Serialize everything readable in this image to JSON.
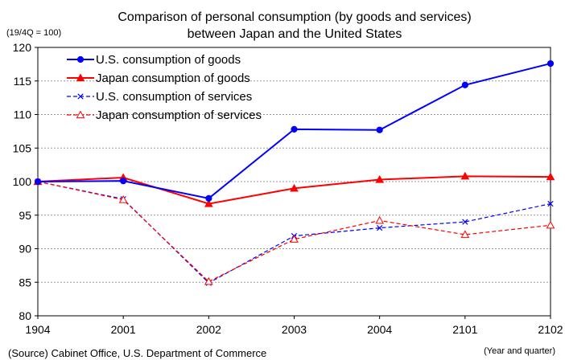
{
  "chart_data": {
    "type": "line",
    "title": "Comparison of personal consumption (by goods and services)",
    "subtitle": "between Japan and the United States",
    "y_unit_label": "(19/4Q = 100)",
    "xlabel": "(Year and quarter)",
    "source": "(Source) Cabinet Office, U.S. Department of Commerce",
    "categories": [
      "1904",
      "2001",
      "2002",
      "2003",
      "2004",
      "2101",
      "2102"
    ],
    "ylim": [
      80,
      120
    ],
    "yticks": [
      80,
      85,
      90,
      95,
      100,
      105,
      110,
      115,
      120
    ],
    "grid": "horizontal dashed",
    "legend_position": "top-left",
    "series": [
      {
        "name": "U.S. consumption of goods",
        "color": "#0000FF",
        "style": "solid",
        "marker": "circle",
        "values": [
          100.0,
          100.1,
          97.5,
          107.8,
          107.7,
          114.4,
          117.6
        ]
      },
      {
        "name": "Japan consumption of goods",
        "color": "#FF0000",
        "style": "solid",
        "marker": "triangle",
        "values": [
          100.0,
          100.6,
          96.7,
          99.0,
          100.3,
          100.8,
          100.7
        ]
      },
      {
        "name": "U.S. consumption of services",
        "color": "#0000FF",
        "style": "dashed",
        "marker": "x",
        "values": [
          100.0,
          97.4,
          84.9,
          91.9,
          93.1,
          94.0,
          96.7
        ]
      },
      {
        "name": "Japan consumption of services",
        "color": "#FF0000",
        "style": "dashed",
        "marker": "open-triangle",
        "values": [
          100.0,
          97.3,
          85.1,
          91.4,
          94.2,
          92.1,
          93.5
        ]
      }
    ]
  }
}
